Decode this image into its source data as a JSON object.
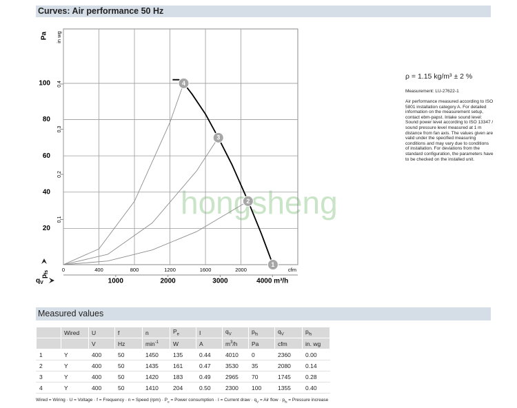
{
  "header": {
    "title": "Curves: Air performance 50 Hz"
  },
  "chart_data": {
    "type": "line",
    "y_label": "Pa",
    "y2_label": "in wg",
    "x_label": "cfm",
    "x_quantity": {
      "t": "q",
      "sub": "V"
    },
    "y_quantity": {
      "t": "p",
      "sub": "fs"
    },
    "watermark": "hongsheng",
    "xlim": [
      0,
      2640
    ],
    "xticks": [
      0,
      400,
      800,
      1200,
      1600,
      2000
    ],
    "x2lim": [
      0,
      4485
    ],
    "x2ticks": [
      1000,
      2000,
      3000,
      {
        "value": 4000,
        "label": "4000 m³/h"
      }
    ],
    "ylim": [
      0,
      130
    ],
    "yticks": [
      20,
      40,
      60,
      80,
      100
    ],
    "y2lim": [
      0,
      0.522
    ],
    "y2ticks": [
      0.1,
      0.2,
      0.3,
      0.4
    ],
    "grid": true,
    "series": [
      {
        "color": "#000000",
        "x": [
          1230,
          1300,
          1355,
          1450,
          1600,
          1745,
          1900,
          2080,
          2230,
          2360
        ],
        "values": [
          102,
          102,
          100,
          94,
          83,
          70,
          55,
          35,
          17,
          0
        ]
      },
      {
        "color": "#8c8c8c",
        "x": [
          0,
          400,
          800,
          1200,
          1355
        ],
        "values": [
          0,
          8.7,
          34.9,
          78.4,
          100
        ]
      },
      {
        "color": "#8c8c8c",
        "x": [
          0,
          500,
          1000,
          1500,
          1745
        ],
        "values": [
          0,
          5.7,
          23.0,
          51.7,
          70
        ]
      },
      {
        "color": "#8c8c8c",
        "x": [
          0,
          500,
          1000,
          1500,
          2080
        ],
        "values": [
          0,
          2.0,
          8.1,
          18.2,
          35
        ]
      }
    ],
    "points": {
      "color": "#a6a6a6",
      "labels": [
        "1",
        "2",
        "3",
        "4"
      ],
      "x": [
        2360,
        2080,
        1745,
        1355
      ],
      "values": [
        0,
        35,
        70,
        100
      ]
    }
  },
  "notes": {
    "density": "ρ = 1.15 kg/m³ ± 2 %",
    "measurement": "Measurement: LU-27622-1",
    "text": "Air performance measured according to ISO 5801 installation category A. For detailed information on the measurement setup, contact ebm-papst. Intake sound level: Sound power level according to ISO 13347 / sound pressure level measured at 1 m distance from fan axis. The values given are valid under the specified measuring conditions and may vary due to conditions of installation. For deviations from the standard configuration, the parameters have to be checked on the installed unit."
  },
  "table": {
    "title": "Measured values",
    "header": [
      null,
      "Wired",
      "U",
      "f",
      "n",
      {
        "t": "P",
        "sub": "e"
      },
      "I",
      {
        "t": "q",
        "sub": "V"
      },
      {
        "t": "p",
        "sub": "fs"
      },
      {
        "t": "q",
        "sub": "V"
      },
      {
        "t": "p",
        "sub": "fs"
      }
    ],
    "units": [
      null,
      null,
      "V",
      "Hz",
      {
        "t": "min",
        "sup": "-1"
      },
      "W",
      "A",
      {
        "t": "m",
        "sup": "3",
        "after": "/h"
      },
      "Pa",
      "cfm",
      "in. wg"
    ],
    "rows": [
      [
        "1",
        "Y",
        "400",
        "50",
        "1450",
        "135",
        "0.44",
        "4010",
        "0",
        "2360",
        "0.00"
      ],
      [
        "2",
        "Y",
        "400",
        "50",
        "1435",
        "161",
        "0.47",
        "3530",
        "35",
        "2080",
        "0.14"
      ],
      [
        "3",
        "Y",
        "400",
        "50",
        "1420",
        "183",
        "0.49",
        "2965",
        "70",
        "1745",
        "0.28"
      ],
      [
        "4",
        "Y",
        "400",
        "50",
        "1410",
        "204",
        "0.50",
        "2300",
        "100",
        "1355",
        "0.40"
      ]
    ],
    "footnote": [
      "Wired = Wiring · ",
      "U = Voltage · ",
      "f = Frequency · ",
      "n = Speed (rpm) · ",
      {
        "t": "P",
        "sub": "e",
        "after": " = Power consumption · "
      },
      "I = Current draw · ",
      {
        "t": "q",
        "sub": "V",
        "after": " = Air flow · "
      },
      {
        "t": "p",
        "sub": "fs",
        "after": " = Pressure increase"
      }
    ]
  }
}
